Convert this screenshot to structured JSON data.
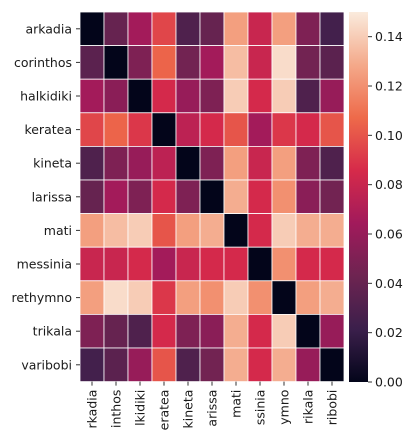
{
  "chart_data": {
    "type": "heatmap",
    "title": "",
    "xlabel": "",
    "ylabel": "",
    "rows": [
      "arkadia",
      "corinthos",
      "halkidiki",
      "keratea",
      "kineta",
      "larissa",
      "mati",
      "messinia",
      "rethymno",
      "trikala",
      "varibobi"
    ],
    "columns": [
      "arkadia",
      "corinthos",
      "halkidiki",
      "keratea",
      "kineta",
      "larissa",
      "mati",
      "messinia",
      "rethymno",
      "trikala",
      "varibobi"
    ],
    "x_tick_labels": [
      "rkadia",
      "inthos",
      "lkidiki",
      "eratea",
      "kineta",
      "arissa",
      "mati",
      "ssinia",
      "ymno",
      "rikala",
      "ribobi"
    ],
    "values": [
      [
        0.0,
        0.04,
        0.065,
        0.095,
        0.03,
        0.04,
        0.125,
        0.08,
        0.125,
        0.05,
        0.025
      ],
      [
        0.035,
        0.0,
        0.05,
        0.105,
        0.045,
        0.065,
        0.135,
        0.08,
        0.145,
        0.045,
        0.035
      ],
      [
        0.065,
        0.055,
        0.0,
        0.085,
        0.06,
        0.05,
        0.14,
        0.085,
        0.14,
        0.03,
        0.06
      ],
      [
        0.095,
        0.105,
        0.09,
        0.0,
        0.075,
        0.085,
        0.1,
        0.065,
        0.09,
        0.085,
        0.1
      ],
      [
        0.03,
        0.05,
        0.06,
        0.075,
        0.0,
        0.05,
        0.125,
        0.08,
        0.125,
        0.05,
        0.03
      ],
      [
        0.04,
        0.065,
        0.05,
        0.085,
        0.05,
        0.0,
        0.13,
        0.085,
        0.12,
        0.055,
        0.045
      ],
      [
        0.125,
        0.135,
        0.14,
        0.1,
        0.125,
        0.13,
        0.0,
        0.085,
        0.14,
        0.13,
        0.13
      ],
      [
        0.08,
        0.08,
        0.085,
        0.065,
        0.08,
        0.085,
        0.085,
        0.0,
        0.12,
        0.085,
        0.085
      ],
      [
        0.125,
        0.145,
        0.14,
        0.09,
        0.125,
        0.12,
        0.14,
        0.12,
        0.0,
        0.125,
        0.13
      ],
      [
        0.05,
        0.04,
        0.03,
        0.085,
        0.05,
        0.055,
        0.13,
        0.085,
        0.14,
        0.0,
        0.06
      ],
      [
        0.025,
        0.035,
        0.06,
        0.1,
        0.03,
        0.045,
        0.13,
        0.085,
        0.13,
        0.06,
        0.0
      ]
    ],
    "colorbar": {
      "min": 0.0,
      "max": 0.15,
      "ticks": [
        "0.00",
        "0.02",
        "0.04",
        "0.06",
        "0.08",
        "0.10",
        "0.12",
        "0.14"
      ]
    },
    "colormap": "rocket",
    "grid": "white cell borders",
    "legend": "colorbar right"
  }
}
